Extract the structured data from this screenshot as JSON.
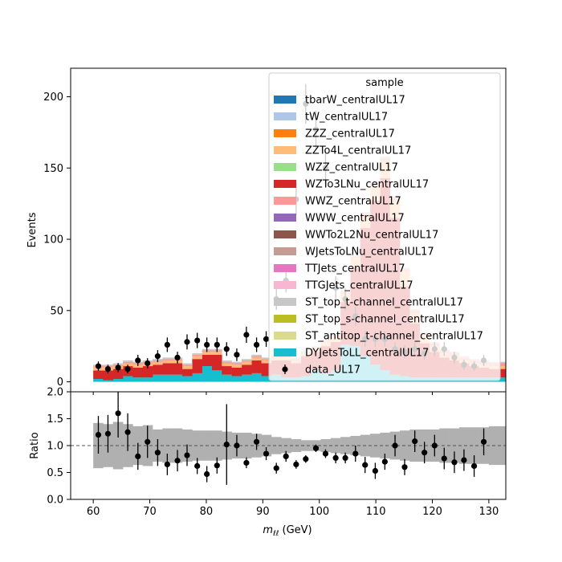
{
  "chart_data": {
    "type": "bar",
    "stacked": true,
    "x_min": 60,
    "bin_width": 1.75,
    "xlabel_base": "m",
    "xlabel_sub": "ℓℓ",
    "xlabel_unit": "(GeV)",
    "xlim": [
      56,
      133
    ],
    "xticks": [
      60,
      70,
      80,
      90,
      100,
      110,
      120,
      130
    ],
    "main": {
      "ylabel": "Events",
      "ylim": [
        -7,
        220
      ],
      "yticks": [
        0,
        50,
        100,
        150,
        200
      ]
    },
    "ratio": {
      "ylabel": "Ratio",
      "ylim": [
        0.0,
        2.0
      ],
      "yticks": [
        "0.0",
        "0.5",
        "1.0",
        "1.5",
        "2.0"
      ],
      "reference_line": 1.0
    },
    "legend": {
      "title": "sample",
      "placement": "top-right",
      "entries": [
        {
          "name": "tbarW_centralUL17",
          "color": "#1f77b4"
        },
        {
          "name": "tW_centralUL17",
          "color": "#aec7e8"
        },
        {
          "name": "ZZZ_centralUL17",
          "color": "#ff7f0e"
        },
        {
          "name": "ZZTo4L_centralUL17",
          "color": "#ffbb78"
        },
        {
          "name": "WZZ_centralUL17",
          "color": "#98df8a"
        },
        {
          "name": "WZTo3LNu_centralUL17",
          "color": "#d62728"
        },
        {
          "name": "WWZ_centralUL17",
          "color": "#ff9896"
        },
        {
          "name": "WWW_centralUL17",
          "color": "#9467bd"
        },
        {
          "name": "WWTo2L2Nu_centralUL17",
          "color": "#8c564b"
        },
        {
          "name": "WJetsToLNu_centralUL17",
          "color": "#c49c94"
        },
        {
          "name": "TTJets_centralUL17",
          "color": "#e377c2"
        },
        {
          "name": "TTGJets_centralUL17",
          "color": "#f7b6d2"
        },
        {
          "name": "ST_top_t-channel_centralUL17",
          "color": "#c7c7c7"
        },
        {
          "name": "ST_top_s-channel_centralUL17",
          "color": "#bcbd22"
        },
        {
          "name": "ST_antitop_t-channel_centralUL17",
          "color": "#dbdb8d"
        },
        {
          "name": "DYJetsToLL_centralUL17",
          "color": "#17becf"
        },
        {
          "name": "data_UL17",
          "color": "#000000",
          "marker": true
        }
      ]
    },
    "mc_stacks": {
      "DYJetsToLL_centralUL17": [
        2,
        1,
        2,
        4,
        3,
        3,
        5,
        5,
        5,
        4,
        6,
        11,
        8,
        5,
        4,
        5,
        6,
        4,
        5,
        3,
        3,
        4,
        8,
        6,
        8,
        26,
        25,
        18,
        12,
        8,
        5,
        4,
        3,
        3,
        3,
        3,
        3,
        3,
        3,
        3,
        3,
        3,
        3,
        3,
        3,
        3,
        3,
        3,
        3,
        3
      ],
      "WZTo3LNu_centralUL17": [
        6,
        7,
        7,
        7,
        7,
        8,
        7,
        8,
        8,
        5,
        10,
        8,
        11,
        6,
        6,
        7,
        9,
        9,
        10,
        12,
        10,
        14,
        13,
        19,
        20,
        30,
        55,
        90,
        115,
        135,
        110,
        63,
        38,
        24,
        18,
        14,
        12,
        10,
        8,
        7,
        6,
        6,
        5,
        5,
        5,
        5,
        5,
        5,
        5,
        5
      ],
      "ZZTo4L_centralUL17": [
        2,
        2,
        2,
        2,
        2,
        2,
        2,
        2,
        2,
        2,
        2,
        2,
        2,
        2,
        2,
        2,
        2,
        2,
        2,
        2,
        2,
        2,
        2,
        3,
        4,
        6,
        7,
        9,
        10,
        12,
        12,
        10,
        7,
        5,
        4,
        3,
        3,
        2,
        2,
        2,
        2,
        2,
        2,
        2,
        2,
        2,
        2,
        2,
        2,
        2
      ],
      "WWZ_centralUL17": [
        1,
        1,
        1,
        1,
        1,
        1,
        1,
        1,
        1,
        1,
        1,
        1,
        1,
        1,
        1,
        1,
        1,
        1,
        1,
        1,
        1,
        1,
        1,
        1,
        1,
        1,
        1,
        1,
        2,
        2,
        2,
        2,
        2,
        2,
        2,
        2,
        2,
        2,
        2,
        2,
        2,
        2,
        2,
        2,
        2,
        2,
        2,
        2,
        2,
        2
      ],
      "ST_top_t-channel_centralUL17": [
        1,
        1,
        1,
        1,
        1,
        1,
        1,
        1,
        1,
        1,
        1,
        1,
        1,
        1,
        1,
        1,
        1,
        1,
        1,
        1,
        1,
        1,
        1,
        1,
        1,
        1,
        1,
        1,
        1,
        1,
        1,
        1,
        1,
        1,
        1,
        1,
        1,
        1,
        1,
        1,
        1,
        1,
        1,
        1,
        1,
        1,
        1,
        1,
        1,
        1
      ]
    },
    "data": {
      "label": "data_UL17",
      "x": [
        60.9,
        62.6,
        64.4,
        66.1,
        67.9,
        69.6,
        71.4,
        73.1,
        74.9,
        76.6,
        78.4,
        80.1,
        81.9,
        83.6,
        85.4,
        87.1,
        88.9,
        90.6,
        92.4,
        94.1,
        95.9,
        97.6,
        99.4,
        101.1,
        102.9,
        104.6,
        106.4,
        108.1,
        109.9,
        111.6,
        113.4,
        115.1,
        116.9,
        118.6,
        120.4,
        122.1,
        123.9,
        125.6,
        127.4,
        129.1
      ],
      "y": [
        11,
        9,
        10,
        9,
        15,
        13,
        18,
        26,
        17,
        28,
        29,
        26,
        26,
        23,
        19,
        33,
        26,
        30,
        58,
        71,
        128,
        195,
        177,
        150,
        66,
        58,
        46,
        30,
        30,
        30,
        23,
        21,
        23,
        20,
        23,
        23,
        17,
        12,
        11,
        15
      ],
      "yerr": [
        3.3,
        3,
        3.2,
        3,
        3.9,
        3.6,
        4.2,
        5.1,
        4.1,
        5.3,
        5.4,
        5.1,
        5.1,
        4.8,
        4.4,
        5.7,
        5.1,
        5.5,
        7.6,
        8.4,
        11.3,
        14,
        13.3,
        12.2,
        8.1,
        7.6,
        6.8,
        5.5,
        5.5,
        5.5,
        4.8,
        4.6,
        4.8,
        4.5,
        4.8,
        4.8,
        4.1,
        3.5,
        3.3,
        3.9
      ],
      "ratio": [
        1.2,
        1.22,
        1.6,
        1.25,
        0.8,
        1.07,
        0.87,
        0.65,
        0.72,
        0.82,
        0.62,
        0.47,
        0.63,
        1.02,
        1.0,
        0.68,
        1.07,
        0.85,
        0.58,
        0.8,
        0.65,
        0.75,
        0.95,
        0.85,
        0.77,
        0.77,
        0.85,
        0.64,
        0.53,
        0.7,
        1.0,
        0.6,
        1.08,
        0.87,
        1.0,
        0.76,
        0.69,
        0.73,
        0.62,
        1.07
      ],
      "ratio_err": [
        0.35,
        0.35,
        0.45,
        0.35,
        0.25,
        0.3,
        0.25,
        0.2,
        0.2,
        0.2,
        0.15,
        0.15,
        0.15,
        0.75,
        0.2,
        0.1,
        0.15,
        0.12,
        0.1,
        0.1,
        0.08,
        0.07,
        0.07,
        0.08,
        0.1,
        0.1,
        0.15,
        0.15,
        0.15,
        0.15,
        0.2,
        0.15,
        0.2,
        0.2,
        0.2,
        0.2,
        0.2,
        0.2,
        0.2,
        0.25
      ]
    },
    "uncertainty_band": {
      "lo": [
        0.58,
        0.6,
        0.56,
        0.6,
        0.64,
        0.62,
        0.7,
        0.68,
        0.68,
        0.7,
        0.72,
        0.72,
        0.72,
        0.74,
        0.76,
        0.76,
        0.78,
        0.8,
        0.84,
        0.86,
        0.88,
        0.9,
        0.9,
        0.88,
        0.86,
        0.84,
        0.82,
        0.8,
        0.78,
        0.76,
        0.74,
        0.72,
        0.7,
        0.7,
        0.7,
        0.68,
        0.68,
        0.66,
        0.66,
        0.66,
        0.64,
        0.64,
        0.64,
        0.64,
        0.64,
        0.64,
        0.64,
        0.64,
        0.64,
        0.64
      ],
      "hi": [
        1.42,
        1.4,
        1.44,
        1.4,
        1.36,
        1.38,
        1.3,
        1.32,
        1.32,
        1.3,
        1.28,
        1.28,
        1.28,
        1.26,
        1.24,
        1.24,
        1.22,
        1.2,
        1.16,
        1.14,
        1.12,
        1.1,
        1.1,
        1.12,
        1.14,
        1.16,
        1.18,
        1.2,
        1.22,
        1.24,
        1.26,
        1.28,
        1.3,
        1.3,
        1.3,
        1.32,
        1.32,
        1.34,
        1.34,
        1.34,
        1.36,
        1.36,
        1.36,
        1.36,
        1.36,
        1.36,
        1.36,
        1.36,
        1.36,
        1.36
      ]
    }
  }
}
